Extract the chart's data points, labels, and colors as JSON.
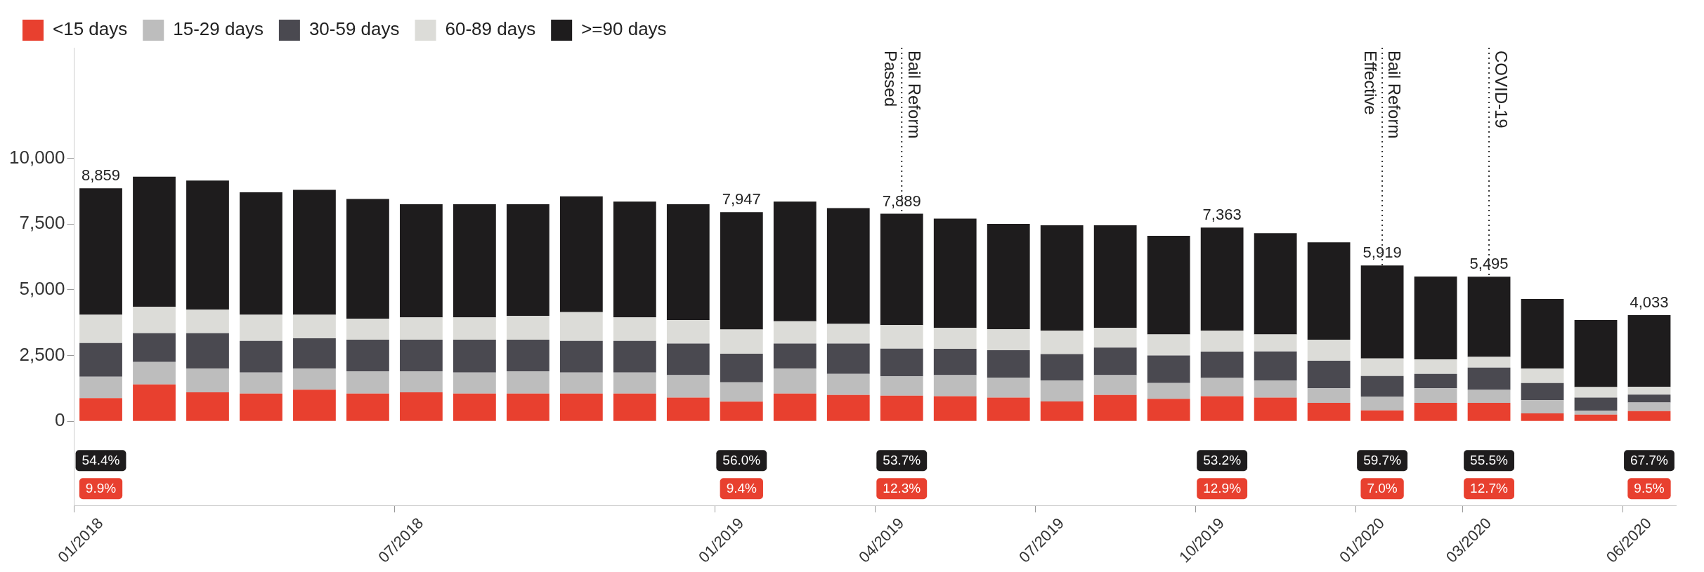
{
  "chart_data": {
    "type": "bar",
    "stacked": true,
    "legend": "top left",
    "grid": false,
    "categories": [
      "01/2018",
      null,
      null,
      null,
      null,
      null,
      "07/2018",
      null,
      null,
      null,
      null,
      null,
      "01/2019",
      null,
      null,
      "04/2019",
      null,
      null,
      "07/2019",
      null,
      null,
      "10/2019",
      null,
      null,
      "01/2020",
      null,
      "03/2020",
      null,
      null,
      "06/2020"
    ],
    "series": [
      {
        "name": "<15 days",
        "color": "#e8402f",
        "values": [
          877,
          1400,
          1100,
          1050,
          1200,
          1050,
          1100,
          1050,
          1050,
          1050,
          1050,
          900,
          747,
          1050,
          1000,
          970,
          950,
          900,
          750,
          1000,
          850,
          950,
          900,
          700,
          414,
          700,
          698,
          300,
          250,
          383
        ]
      },
      {
        "name": "15-29 days",
        "color": "#bdbdbd",
        "values": [
          814,
          850,
          900,
          800,
          800,
          850,
          800,
          800,
          850,
          800,
          800,
          850,
          733,
          950,
          800,
          736,
          800,
          750,
          800,
          750,
          600,
          696,
          650,
          550,
          522,
          550,
          495,
          500,
          150,
          327
        ]
      },
      {
        "name": "30-59 days",
        "color": "#4a4950",
        "values": [
          1284,
          1100,
          1350,
          1200,
          1150,
          1200,
          1200,
          1250,
          1200,
          1200,
          1200,
          1200,
          1087,
          950,
          1150,
          1057,
          1000,
          1050,
          1000,
          1050,
          1050,
          997,
          1100,
          1050,
          785,
          550,
          846,
          650,
          500,
          302
        ]
      },
      {
        "name": "60-89 days",
        "color": "#dcdcd8",
        "values": [
          1072,
          1000,
          900,
          1000,
          900,
          800,
          850,
          850,
          900,
          1100,
          900,
          900,
          921,
          850,
          750,
          891,
          800,
          800,
          900,
          750,
          800,
          803,
          650,
          800,
          664,
          550,
          406,
          550,
          400,
          291
        ]
      },
      {
        "name": ">=90 days",
        "color": "#1e1c1d",
        "values": [
          4812,
          4950,
          4900,
          4650,
          4750,
          4550,
          4300,
          4300,
          4250,
          4400,
          4400,
          4400,
          4459,
          4550,
          4400,
          4235,
          4150,
          4000,
          4000,
          3900,
          3750,
          3917,
          3850,
          3700,
          3534,
          3150,
          3050,
          2650,
          2550,
          2730
        ]
      }
    ],
    "annotations": [
      "54.4%",
      "9.9%",
      "56.0%",
      "9.4%",
      "53.7%",
      "12.3%",
      "53.2%",
      "12.9%",
      "59.7%",
      "7.0%",
      "55.5%",
      "12.7%",
      "67.7%",
      "9.5%"
    ],
    "totals": [
      "8,859",
      null,
      null,
      null,
      null,
      null,
      null,
      null,
      null,
      null,
      null,
      null,
      "7,947",
      null,
      null,
      "7,889",
      null,
      null,
      null,
      null,
      null,
      "7,363",
      null,
      null,
      "5,919",
      null,
      "5,495",
      null,
      null,
      "4,033"
    ],
    "ylim": [
      -3200,
      14200
    ],
    "yticks": [
      0,
      {
        "value": 2500,
        "label": "2,500"
      },
      {
        "value": 5000,
        "label": "5,000"
      },
      {
        "value": 7500,
        "label": "7,500"
      },
      {
        "value": 10000,
        "label": "10,000"
      }
    ],
    "ref_lines": [
      {
        "axis": "x",
        "value": "04/2019",
        "label": "Bail Reform\nPassed",
        "line_style": "dotted"
      },
      {
        "axis": "x",
        "value": "01/2020",
        "label": "Bail Reform\nEffective",
        "line_style": "dotted"
      },
      {
        "axis": "x",
        "value": "03/2020",
        "label": "COVID-19",
        "line_style": "dotted"
      }
    ]
  }
}
